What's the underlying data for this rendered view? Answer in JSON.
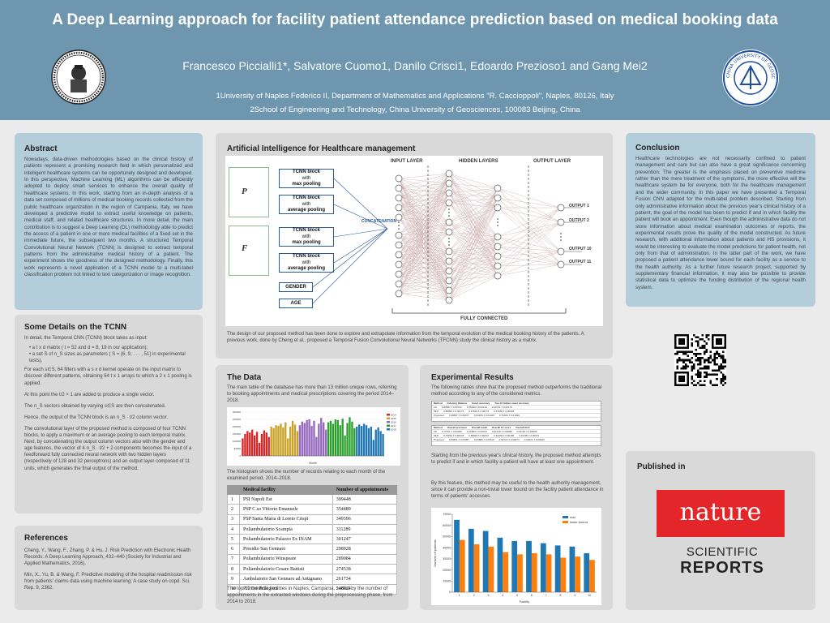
{
  "header": {
    "title": "A Deep Learning approach for facility patient attendance prediction based on medical booking data",
    "authors": "Francesco Piccialli1*, Salvatore Cuomo1, Danilo Crisci1, Edoardo Prezioso1 and Gang Mei2",
    "affiliation1": "1University of Naples Federico II, Department of Mathematics and Applications \"R. Caccioppoli\", Naples, 80126, Italy",
    "affiliation2": "2School of Engineering and Technology, China University of Geosciences, 100083 Beijing, China",
    "logo_right_text": "CHINA UNIVERSITY OF GEOSCIENCES"
  },
  "abstract": {
    "title": "Abstract",
    "text": "Nowadays, data-driven methodologies based on the clinical history of patients represent a promising research field in which personalized and intelligent healthcare systems can be opportunely designed and developed. In this perspective, Machine Learning (ML) algorithms can be efficiently adopted to deploy smart services to enhance the overall quality of healthcare systems. In this work, starting from an in-depth analysis of a data set composed of millions of medical booking records collected from the public healthcare organization in the region of Campania, Italy, we have developed a predictive model to extract useful knowledge on patients, medical staff, and related healthcare structures. In more detail, the main contribution is to suggest a Deep Learning (DL) methodology able to predict the access of a patient in one or more medical facilities of a fixed set in the immediate future, the subsequent two months. A structured Temporal Convolutional Neural Network (TCNN) is designed to extract temporal patterns from the administrative medical history of a patient. The experiment shows the goodness of the designed methodology. Finally, this work represents a novel application of a TCNN model to a multi-label classification problem not linked to text categorization or image recognition."
  },
  "details": {
    "title": "Some Details on the TCNN",
    "intro": "In detail, the Temporal CNN (TCNN) block takes as input:",
    "bullet1": "a t x d matrix ( t = 52 and d = 8, 19 in our application);",
    "bullet2": "a set S of n_S sizes as parameters ( S = {6, 9, . . . , 51} in experimental tests).",
    "p1": "For each s∈S, 64 filters with a s x d kernel operate on the input matrix to discover different patterns, obtaining 64 t x 1 arrays to which a 2 x 1 pooling is applied.",
    "p2": "At this point the t/2 × 1 are added to produce a single vector.",
    "p3": "The n_S vectors obtained by varying s∈S are then concatenated.",
    "p4": "Hence, the output of the TCNN block is an n_S · t/2 column vector.",
    "p5": "The convolutional layer of the proposed method is composed of four TCNN blocks, to apply a maximum or an average pooling to each temporal matrix.",
    "p6": "Next, by concatenating the output column vectors also with the gender and age features, the vector of 4·n_S · t/2 + 2 components becomes the input of a feedforward fully connected neural network with two hidden layers (respectively of 128 and 32 perceptrons) and an output layer composed of 11 units, which generates the final output of the method."
  },
  "references": {
    "title": "References",
    "ref1": "Cheng, Y., Wang, F., Zhang, P. & Hu, J. Risk Prediction with Electronic Health Records: A Deep Learning Approach, 432–440 (Society for Industrial and Applied Mathematics, 2016).",
    "ref2": "Min, X., Yu, B. & Wang, F. Predictive modeling of the hospital readmission risk from patients' claims data using machine learning: A case study on copd. Sci. Rep. 9, 2362."
  },
  "ai": {
    "title": "Artificial Intelligence for Healthcare management",
    "p_label": "P",
    "f_label": "F",
    "block1": "TCNN block",
    "with": "with",
    "max": "max pooling",
    "avg": "average pooling",
    "gender": "GENDER",
    "age": "AGE",
    "concat": "CONCATENATION",
    "input_layer": "INPUT LAYER",
    "hidden_layers": "HIDDEN LAYERS",
    "output_layer": "OUTPUT LAYER",
    "out1": "OUTPUT 1",
    "out2": "OUTPUT 2",
    "out10": "OUTPUT 10",
    "out11": "OUTPUT 11",
    "fully": "FULLY CONNECTED",
    "caption": "The design of our proposed method has been done to explore and extrapolate information from the temporal evolution of the medical booking history of the patients. A previous work, done by Cheng et al., proposed a Temporal Fusion Convolutional Neural Networks (TFCNN) study the clinical history as a matrix."
  },
  "conclusion": {
    "title": "Conclusion",
    "text": "Healthcare technologies are not necessarily confined to patient management and care but can also have a great significance concerning prevention. The greater is the emphasis placed on preventive medicine rather than the mere treatment of the symptoms, the more effective will the healthcare system be for everyone, both for the healthcare management and the wider community. In this paper we have presented a Temporal Fusion CNN adapted for the multi-label problem described. Starting from only administrative information about the previous year's clinical history of a patient, the goal of the model has been to predict if and in which facility the patient will book an appointment. Even though the administrative data do not store information about medical examination outcomes or reports, the experimental results prove the quality of the model constructed. As future research, with additional information about patients and HS provisions, it would be interesting to evaluate the model predictions for patient health, not only from that of administration. In the latter part of the work, we have proposed a patient attendance lower bound for each facility as a service to the health authority. As a further future research project, supported by supplementary financial information, it may also be possible to provide statistical data to optimize the funding distribution of the regional health system."
  },
  "data": {
    "title": "The Data",
    "text": "The main table of the database has more than 13 million unique rows, referring to booking appointments and medical prescriptions covering the period 2014–2018.",
    "hist_caption": "The histogram shows the number of records relating to each month of the examined period, 2014–2018.",
    "table_caption": "The top 10 medical facilities in Naples, Campania, sorted by the number of appointments in the extracted windows during the preprocessing phase, from 2014 to 2018.",
    "headers": [
      "",
      "Medical facility",
      "Number of appointments"
    ],
    "rows": [
      [
        "1",
        "PSI Napoli Est",
        "399448"
      ],
      [
        "2",
        "PSP C.so Vittorio Emanuele",
        "354489"
      ],
      [
        "3",
        "PSP Santa Maria di Loreto Crispi",
        "349396"
      ],
      [
        "4",
        "Poliambulatorio Scampia",
        "311289"
      ],
      [
        "5",
        "Poliambulatorio Palazzo Ex INAM",
        "301247"
      ],
      [
        "6",
        "Presidio San Gennaro",
        "298928"
      ],
      [
        "7",
        "Poliambulatorio Winspeare",
        "289084"
      ],
      [
        "8",
        "Poliambulatorio Cesare Battisti",
        "274538"
      ],
      [
        "9",
        "Ambulatorio San Gennaro ad Antignano",
        "261734"
      ],
      [
        "10",
        "PO Dei Pellegrini",
        "248924"
      ]
    ]
  },
  "results": {
    "title": "Experimental Results",
    "text1": "The following tables show that the proposed method outperforms the traditional method according to any of the considered metrics.",
    "text2": "Starting from the previous year's clinical history, the proposed method attempts to predict if and in which facility a patient will have at least one appointment.",
    "text3": "By this feature, this method may be useful to the health authority management, since it can provide a non-trivial lower bound on the facility patient attendance in terms of patients' accesses.",
    "table1_headers": [
      "Method",
      "Indexing Balance",
      "Exact accuracy",
      "Top-10 hidden exact accuracy"
    ],
    "table1_rows": [
      [
        "LR",
        "0.82587 ± 0.00722",
        "0.45299 ± 0.00134",
        "0.29721 ± 0.00176"
      ],
      [
        "MLP",
        "0.86862 ± 0.00173",
        "0.47543 ± 0.00174",
        "0.67652 ± 0.00003"
      ],
      [
        "Proposed",
        "0.40897 ± 0.00077",
        "0.64159 ± 0.01445",
        "0.76184 ± 0.01999"
      ]
    ],
    "table2_headers": [
      "Method",
      "Overall precision",
      "Overall recall",
      "Overall F1 score",
      "Overall AUC"
    ],
    "table2_rows": [
      [
        "LR",
        "0.77021 ± 0.00309",
        "0.72984 ± 0.00072",
        "0.61149 ± 0.00088",
        "0.91191 ± 0.00089"
      ],
      [
        "MLP",
        "0.79692 ± 0.00318",
        "0.68932 ± 0.00347",
        "0.64469 ± 0.00186",
        "0.91295 ± 0.00072"
      ],
      [
        "Proposed",
        "0.83841 ± 0.00387",
        "0.84886 ± 0.00119",
        "0.82723 ± 0.00074",
        "0.92031 ± 0.00069"
      ]
    ]
  },
  "published": {
    "title": "Published in",
    "nature": "nature",
    "sr1": "SCIENTIFIC",
    "sr2": "REPORTS"
  },
  "chart_data": [
    {
      "type": "bar",
      "title": "",
      "xlabel": "Month",
      "ylabel": "",
      "ylim": [
        0,
        300000
      ],
      "yticks": [
        "0",
        "50000",
        "100000",
        "150000",
        "200000",
        "250000",
        "300000"
      ],
      "legend_position": "top-right",
      "series_names": [
        "2014",
        "2015",
        "2016",
        "2017",
        "2018"
      ],
      "series_colors": [
        "#d62728",
        "#c9a227",
        "#9467bd",
        "#2ca02c",
        "#1f77b4"
      ],
      "values": [
        120000,
        150000,
        170000,
        160000,
        180000,
        140000,
        165000,
        90000,
        150000,
        175000,
        160000,
        130000,
        200000,
        190000,
        210000,
        205000,
        220000,
        195000,
        230000,
        120000,
        200000,
        240000,
        215000,
        170000,
        210000,
        235000,
        225000,
        245000,
        250000,
        205000,
        240000,
        130000,
        220000,
        260000,
        230000,
        180000,
        230000,
        240000,
        220000,
        250000,
        245000,
        210000,
        255000,
        140000,
        225000,
        265000,
        235000,
        190000,
        200000,
        215000,
        205000,
        220000,
        210000,
        190000,
        200000,
        110000,
        180000,
        195000,
        170000,
        150000
      ]
    },
    {
      "type": "bar",
      "title": "",
      "xlabel": "Facility",
      "ylabel": "Number of patients",
      "ylim": [
        0,
        70000
      ],
      "yticks": [
        "0",
        "10000",
        "20000",
        "30000",
        "40000",
        "50000",
        "60000",
        "70000"
      ],
      "legend_position": "top-right",
      "categories": [
        "1",
        "2",
        "3",
        "4",
        "5",
        "6",
        "7",
        "8",
        "9",
        "10"
      ],
      "series": [
        {
          "name": "real",
          "color": "#1f77b4",
          "values": [
            65000,
            57000,
            55000,
            49000,
            46000,
            46000,
            44000,
            42000,
            41000,
            35000
          ]
        },
        {
          "name": "lower bound",
          "color": "#ff7f0e",
          "values": [
            47000,
            43000,
            41000,
            36000,
            34000,
            35000,
            34000,
            31000,
            32000,
            29000
          ]
        }
      ]
    }
  ]
}
